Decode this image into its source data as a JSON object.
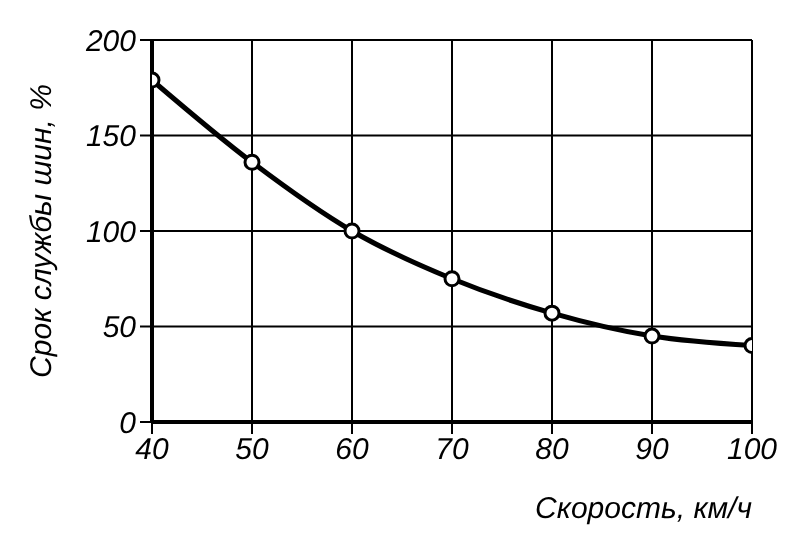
{
  "chart_data": {
    "type": "line",
    "xlabel": "Скорость, км/ч",
    "ylabel": "Срок службы шин, %",
    "x": [
      40,
      50,
      60,
      70,
      80,
      90,
      100
    ],
    "series": [
      {
        "color": "#000000",
        "values": [
          179,
          136,
          100,
          75,
          57,
          45,
          40
        ]
      }
    ],
    "xlim": [
      40,
      100
    ],
    "xticks": [
      40,
      50,
      60,
      70,
      80,
      90,
      100
    ],
    "ylim": [
      0,
      200
    ],
    "yticks": [
      0,
      50,
      100,
      150,
      200
    ],
    "grid": true,
    "marker": "circle",
    "line_style": "solid"
  }
}
